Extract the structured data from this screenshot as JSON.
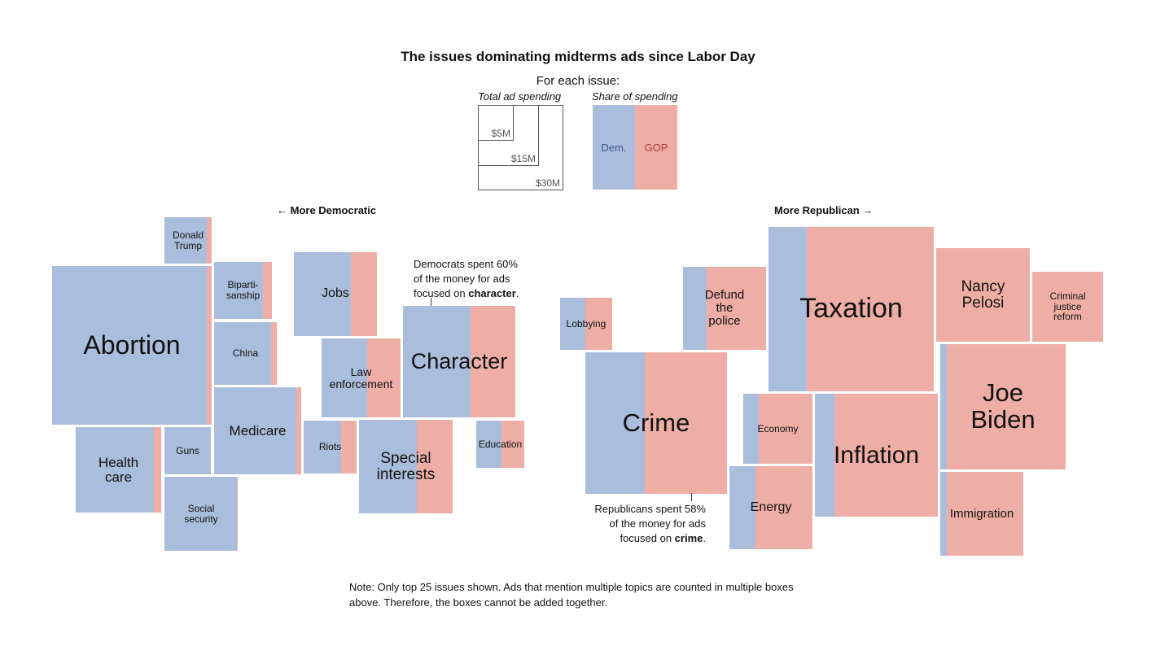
{
  "title": "The issues dominating midterms ads since Labor Day",
  "subtitle": "For each issue:",
  "legend": {
    "size_header": "Total ad spending",
    "share_header": "Share of spending",
    "sizes": [
      "$5M",
      "$15M",
      "$30M"
    ],
    "dem_label": "Dem.",
    "gop_label": "GOP"
  },
  "direction": {
    "left": "← More Democratic",
    "right": "More Republican →"
  },
  "colors": {
    "dem": "#aabddc",
    "gop": "#eeaea6",
    "dem_text": "#3a5a8a",
    "gop_text": "#b03a30"
  },
  "annotations": {
    "character": {
      "before": "Democrats spent 60%\nof the money for ads\nfocused on ",
      "bold": "character",
      "after": "."
    },
    "crime": {
      "before": "Republicans spent 58%\nof the money for ads\nfocused on ",
      "bold": "crime",
      "after": "."
    }
  },
  "note": "Note: Only top 25 issues shown. Ads that mention multiple topics are counted in multiple boxes above. Therefore, the boxes cannot be added together.",
  "chart_data": {
    "type": "treemap",
    "size_measure": "Total ad spending",
    "color_measure": "Share of spending (Dem. / GOP)",
    "issues": [
      {
        "name": "Donald\nTrump",
        "dem_share": 0.9
      },
      {
        "name": "Abortion",
        "dem_share": 0.97
      },
      {
        "name": "Biparti-\nsanship",
        "dem_share": 0.85
      },
      {
        "name": "China",
        "dem_share": 0.91
      },
      {
        "name": "Jobs",
        "dem_share": 0.69
      },
      {
        "name": "Law\nenforcement",
        "dem_share": 0.58
      },
      {
        "name": "Character",
        "dem_share": 0.6
      },
      {
        "name": "Medicare",
        "dem_share": 0.94
      },
      {
        "name": "Health\ncare",
        "dem_share": 0.91
      },
      {
        "name": "Guns",
        "dem_share": 1.0
      },
      {
        "name": "Social\nsecurity",
        "dem_share": 0.99
      },
      {
        "name": "Riots",
        "dem_share": 0.7
      },
      {
        "name": "Special\ninterests",
        "dem_share": 0.62
      },
      {
        "name": "Education",
        "dem_share": 0.53
      },
      {
        "name": "Lobbying",
        "dem_share": 0.48
      },
      {
        "name": "Defund\nthe\npolice",
        "dem_share": 0.28
      },
      {
        "name": "Crime",
        "dem_share": 0.42
      },
      {
        "name": "Taxation",
        "dem_share": 0.23
      },
      {
        "name": "Nancy\nPelosi",
        "dem_share": 0.0
      },
      {
        "name": "Criminal\njustice\nreform",
        "dem_share": 0.0
      },
      {
        "name": "Economy",
        "dem_share": 0.22
      },
      {
        "name": "Inflation",
        "dem_share": 0.16
      },
      {
        "name": "Energy",
        "dem_share": 0.31
      },
      {
        "name": "Joe\nBiden",
        "dem_share": 0.05
      },
      {
        "name": "Immigration",
        "dem_share": 0.08
      }
    ]
  }
}
